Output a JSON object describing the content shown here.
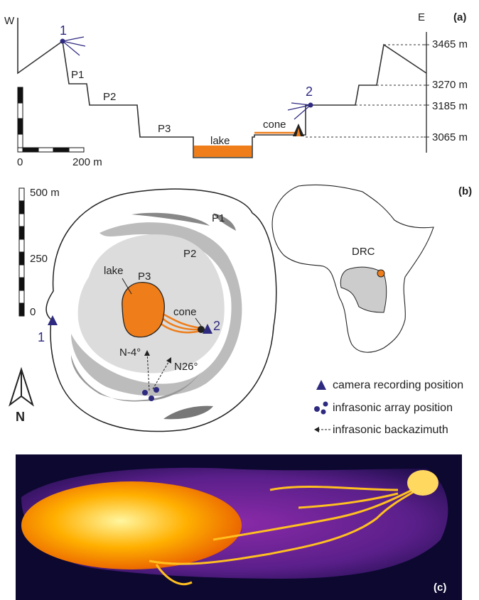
{
  "panel_a": {
    "label": "(a)",
    "west": "W",
    "east": "E",
    "camera_1": "1",
    "camera_2": "2",
    "platforms": [
      "P1",
      "P2",
      "P3"
    ],
    "lake": "lake",
    "cone": "cone",
    "elevations": [
      "3465 m",
      "3270 m",
      "3185 m",
      "3065 m"
    ],
    "scale_labels": [
      "0",
      "200 m"
    ]
  },
  "panel_b": {
    "label": "(b)",
    "scale_labels": [
      "500 m",
      "250",
      "0"
    ],
    "platforms": [
      "P1",
      "P2",
      "P3"
    ],
    "lake": "lake",
    "cone": "cone",
    "camera_1": "1",
    "camera_2": "2",
    "backazimuths": [
      "N-4°",
      "N26°"
    ],
    "north": "N",
    "country": "DRC",
    "legend": [
      "camera recording position",
      "infrasonic array position",
      "infrasonic backazimuth"
    ]
  },
  "panel_c": {
    "label": "(c)"
  }
}
